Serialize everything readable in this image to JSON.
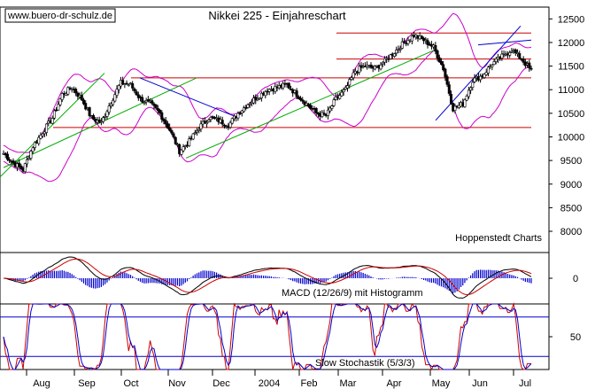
{
  "watermark": "www.buero-dr-schulz.de",
  "source": "Hoppenstedt Charts",
  "chart_data": [
    {
      "id": "price",
      "type": "candlestick",
      "title": "Nikkei 225 - Einjahreschart",
      "x_labels": [
        "Aug",
        "Sep",
        "Oct",
        "Nov",
        "Dec",
        "2004",
        "Feb",
        "Mar",
        "Apr",
        "May",
        "Jun",
        "Jul"
      ],
      "y_ticks": [
        12500,
        12000,
        11500,
        11000,
        10500,
        10000,
        9500,
        9000,
        8500,
        8000
      ],
      "ylim": [
        7550,
        12750
      ],
      "weekly_close": [
        9650,
        9450,
        9300,
        9800,
        10100,
        10400,
        10900,
        11050,
        10800,
        10400,
        10300,
        10750,
        11150,
        11100,
        10800,
        10700,
        10500,
        10150,
        9700,
        9900,
        10200,
        10400,
        10350,
        10250,
        10500,
        10700,
        10850,
        11000,
        11050,
        11100,
        10900,
        10700,
        10500,
        10450,
        10800,
        11000,
        11400,
        11500,
        11450,
        11600,
        11800,
        12000,
        12150,
        12050,
        11900,
        11450,
        10600,
        10700,
        11200,
        11300,
        11550,
        11700,
        11850,
        11650,
        11400
      ],
      "horizontal_lines": [
        12200,
        11650,
        11250,
        10200
      ],
      "support_lines": [
        "green",
        "green",
        "green"
      ],
      "trend_lines": [
        "blue",
        "blue"
      ],
      "overlay": "bollinger"
    },
    {
      "id": "macd",
      "type": "line+histogram",
      "label": "MACD (12/26/9) mit Histogramm",
      "y_ticks": [
        0
      ],
      "series": [
        "MACD",
        "Signal",
        "Histogram"
      ]
    },
    {
      "id": "stochastic",
      "type": "line",
      "label": "Slow Stochastik (5/3/3)",
      "y_ticks": [
        50
      ],
      "levels": [
        80,
        20
      ],
      "series": [
        "%K",
        "%D"
      ]
    }
  ]
}
